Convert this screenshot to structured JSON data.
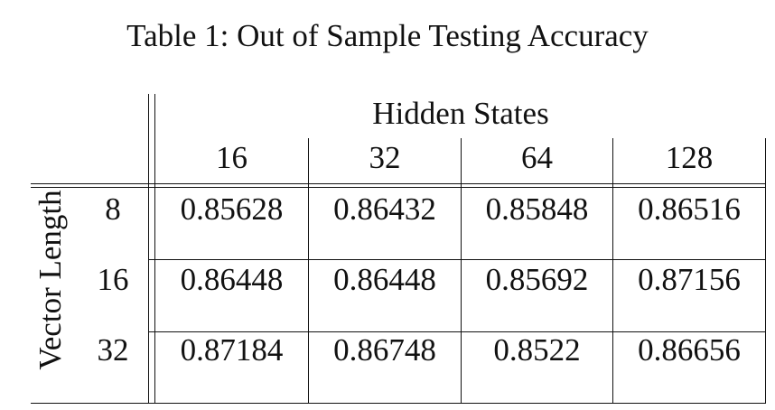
{
  "caption": "Table 1: Out of Sample Testing Accuracy",
  "table": {
    "column_group_header": "Hidden States",
    "row_group_header": "Vector Length",
    "columns": [
      "16",
      "32",
      "64",
      "128"
    ],
    "rows": [
      {
        "label": "8",
        "values": [
          "0.85628",
          "0.86432",
          "0.85848",
          "0.86516"
        ]
      },
      {
        "label": "16",
        "values": [
          "0.86448",
          "0.86448",
          "0.85692",
          "0.87156"
        ]
      },
      {
        "label": "32",
        "values": [
          "0.87184",
          "0.86748",
          "0.8522",
          "0.86656"
        ]
      }
    ]
  }
}
